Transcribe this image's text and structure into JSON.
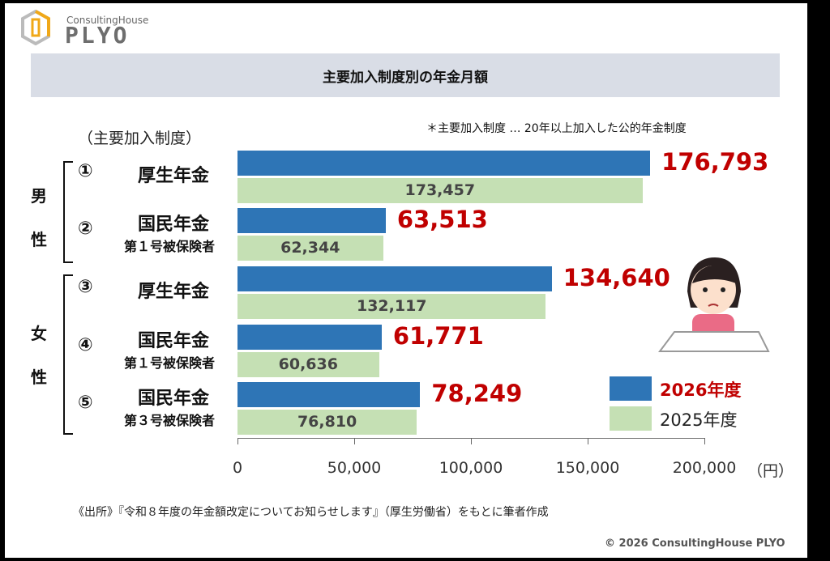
{
  "logo": {
    "sub": "ConsultingHouse",
    "main": "PLYO"
  },
  "title": "主要加入制度別の年金月額",
  "note": "＊主要加入制度 … 20年以上加入した公的年金制度",
  "subhead": "（主要加入制度）",
  "groups": [
    {
      "label": "男性",
      "chars": [
        "男",
        "性"
      ]
    },
    {
      "label": "女性",
      "chars": [
        "女",
        "性"
      ]
    }
  ],
  "source": "《出所》『令和８年度の年金額改定についてお知らせします』（厚生労働省）をもとに筆者作成",
  "copyright": "© 2026 ConsultingHouse PLYO",
  "colors": {
    "s2026": "#2e75b6",
    "s2025": "#c5e0b4",
    "highlight": "#c00000"
  },
  "chart_data": {
    "type": "bar",
    "orientation": "horizontal",
    "title": "主要加入制度別の年金月額",
    "categories": [
      {
        "num": "①",
        "name": "厚生年金",
        "sub": ""
      },
      {
        "num": "②",
        "name": "国民年金",
        "sub": "第１号被保険者"
      },
      {
        "num": "③",
        "name": "厚生年金",
        "sub": ""
      },
      {
        "num": "④",
        "name": "国民年金",
        "sub": "第１号被保険者"
      },
      {
        "num": "⑤",
        "name": "国民年金",
        "sub": "第３号被保険者"
      }
    ],
    "series": [
      {
        "name": "2026年度",
        "values": [
          176793,
          63513,
          134640,
          61771,
          78249
        ],
        "labels": [
          "176,793",
          "63,513",
          "134,640",
          "61,771",
          "78,249"
        ]
      },
      {
        "name": "2025年度",
        "values": [
          173457,
          62344,
          132117,
          60636,
          76810
        ],
        "labels": [
          "173,457",
          "62,344",
          "132,117",
          "60,636",
          "76,810"
        ]
      }
    ],
    "xlim": [
      0,
      200000
    ],
    "xticks": [
      "0",
      "50,000",
      "100,000",
      "150,000",
      "200,000"
    ],
    "xunit": "（円）",
    "legend": "bottom-right"
  }
}
